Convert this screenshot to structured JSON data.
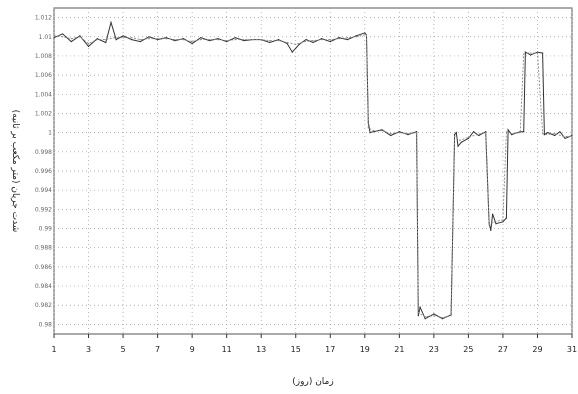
{
  "chart_data": {
    "type": "line",
    "xlabel": "زمان (روز)",
    "ylabel": "شدت جریان (متر مکعب بر ثانیه)",
    "xlim": [
      1,
      31
    ],
    "ylim": [
      0.979,
      1.013
    ],
    "x_ticks": [
      1,
      3,
      5,
      7,
      9,
      11,
      13,
      15,
      17,
      19,
      21,
      23,
      25,
      27,
      29,
      31
    ],
    "x_tick_labels": [
      "1",
      "3",
      "5",
      "7",
      "9",
      "11",
      "13",
      "15",
      "17",
      "19",
      "21",
      "23",
      "25",
      "27",
      "29",
      "31"
    ],
    "y_ticks": [
      0.98,
      0.982,
      0.984,
      0.986,
      0.988,
      0.99,
      0.992,
      0.994,
      0.996,
      0.998,
      1.0,
      1.002,
      1.004,
      1.006,
      1.008,
      1.01,
      1.012
    ],
    "y_tick_labels": [
      "0.98",
      "0.982",
      "0.984",
      "0.986",
      "0.988",
      "0.99",
      "0.992",
      "0.994",
      "0.996",
      "0.998",
      "1",
      "1.002",
      "1.004",
      "1.006",
      "1.008",
      "1.01",
      "1.012"
    ],
    "grid": true,
    "series": [
      {
        "color": "#333333",
        "x": [
          1,
          1.5,
          2,
          2.5,
          3,
          3.5,
          4,
          4.3,
          4.6,
          5,
          5.5,
          6,
          6.5,
          7,
          7.5,
          8,
          8.5,
          9,
          9.5,
          10,
          10.5,
          11,
          11.5,
          12,
          12.5,
          13,
          13.5,
          14,
          14.5,
          14.8,
          15.2,
          15.6,
          16,
          16.5,
          17,
          17.5,
          18,
          18.5,
          19,
          19.1,
          19.2,
          19.3,
          19.5,
          20,
          20.5,
          21,
          21.5,
          22,
          22.1,
          22.2,
          22.5,
          23,
          23.5,
          24,
          24.2,
          24.3,
          24.4,
          24.6,
          25,
          25.3,
          25.6,
          26,
          26.2,
          26.3,
          26.4,
          26.6,
          27,
          27.2,
          27.3,
          27.5,
          28,
          28.2,
          28.3,
          28.6,
          29,
          29.3,
          29.4,
          29.6,
          30,
          30.3,
          30.6,
          31
        ],
        "y": [
          1.0099,
          1.0103,
          1.0095,
          1.0101,
          1.009,
          1.0098,
          1.0094,
          1.0115,
          1.0097,
          1.0101,
          1.0097,
          1.0095,
          1.01,
          1.0097,
          1.0099,
          1.0096,
          1.0098,
          1.0093,
          1.0099,
          1.0096,
          1.0098,
          1.0095,
          1.0099,
          1.0096,
          1.0097,
          1.0097,
          1.0094,
          1.0097,
          1.0093,
          1.0084,
          1.0092,
          1.0097,
          1.0094,
          1.0098,
          1.0095,
          1.0099,
          1.0097,
          1.0101,
          1.0104,
          1.0102,
          1.0011,
          1.0,
          1.0001,
          1.0003,
          0.9997,
          1.0001,
          0.9998,
          1.0001,
          0.9809,
          0.9818,
          0.9806,
          0.9811,
          0.9806,
          0.981,
          0.9998,
          1.0,
          0.9986,
          0.999,
          0.9994,
          1.0001,
          0.9997,
          1.0001,
          0.9906,
          0.9898,
          0.9915,
          0.9905,
          0.9907,
          0.9911,
          1.0003,
          0.9998,
          1.0001,
          1.0001,
          1.0084,
          1.0081,
          1.0084,
          1.0083,
          0.9998,
          1.0,
          0.9997,
          1.0001,
          0.9994,
          0.9997
        ]
      },
      {
        "color": "#888888",
        "x": [
          1,
          1.5,
          2,
          2.5,
          3,
          3.5,
          4,
          4.5,
          5,
          5.5,
          6,
          6.5,
          7,
          7.5,
          8,
          8.5,
          9,
          9.5,
          10,
          10.5,
          11,
          11.5,
          12,
          12.5,
          13,
          13.5,
          14,
          14.5,
          15,
          15.5,
          16,
          16.5,
          17,
          17.5,
          18,
          18.5,
          19,
          19.1,
          19.2,
          19.5,
          20,
          20.5,
          21,
          21.5,
          22,
          22.1,
          22.5,
          23,
          23.5,
          24,
          24.2,
          24.5,
          25,
          25.5,
          26,
          26.2,
          26.5,
          27,
          27.2,
          27.5,
          28,
          28.2,
          28.5,
          29,
          29.3,
          29.5,
          30,
          30.5,
          31
        ],
        "y": [
          1.0101,
          1.01,
          1.0098,
          1.01,
          1.0093,
          1.0097,
          1.0097,
          1.0099,
          1.0099,
          1.0099,
          1.0097,
          1.0098,
          1.0098,
          1.0098,
          1.0097,
          1.0097,
          1.0095,
          1.0097,
          1.0097,
          1.0097,
          1.0096,
          1.0097,
          1.0097,
          1.0097,
          1.0097,
          1.0096,
          1.0096,
          1.0094,
          1.0092,
          1.0095,
          1.0096,
          1.0097,
          1.0097,
          1.0098,
          1.0099,
          1.01,
          1.0102,
          1.0102,
          1.0005,
          1.0002,
          1.0002,
          0.9999,
          1.0,
          0.9999,
          1.0,
          0.9812,
          0.9808,
          0.9809,
          0.9807,
          0.9809,
          0.9996,
          0.9992,
          0.9995,
          0.9998,
          1.0,
          0.9904,
          0.9907,
          0.9909,
          1.0001,
          0.9999,
          1.0,
          1.0082,
          1.0083,
          1.0083,
          0.9999,
          0.9998,
          0.9999,
          0.9996,
          0.9996
        ]
      }
    ]
  }
}
